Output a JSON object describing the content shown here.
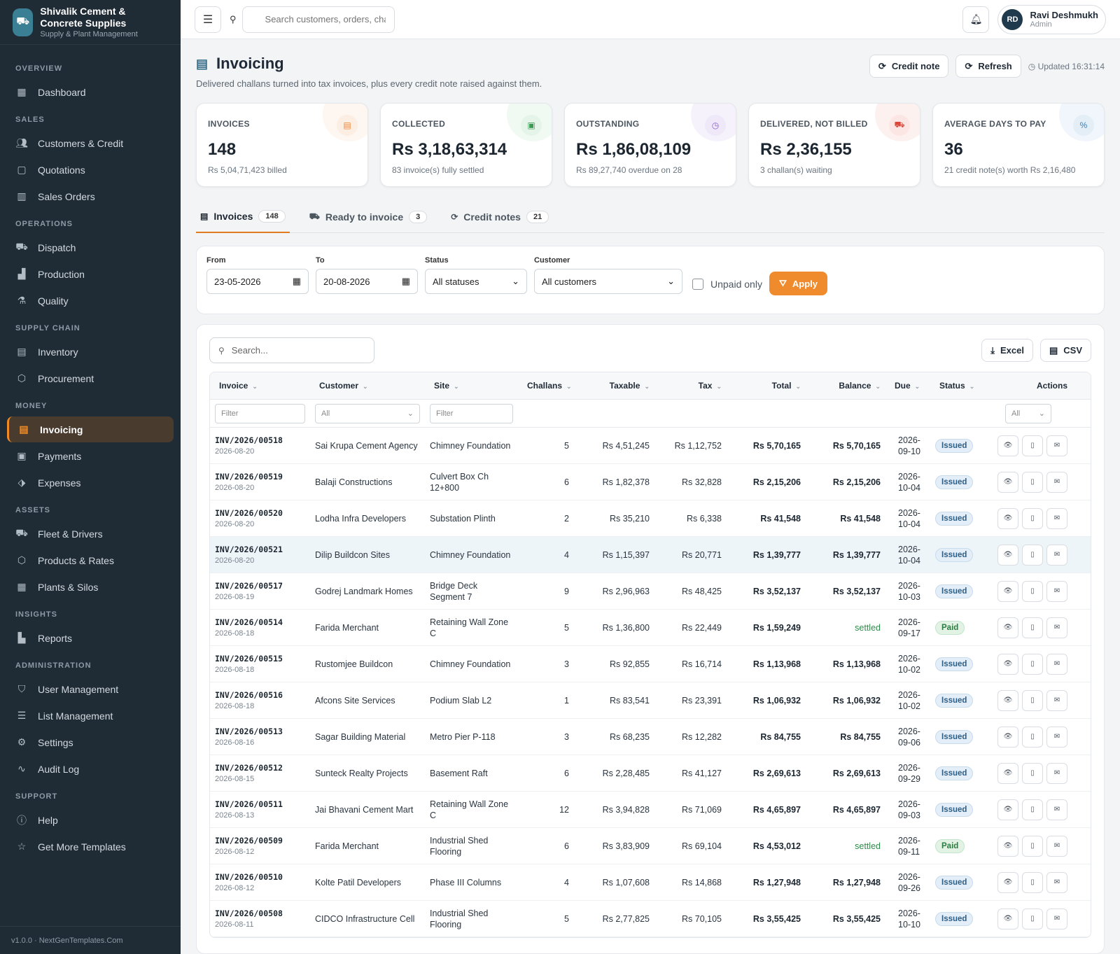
{
  "brand": {
    "title": "Shivalik Cement & Concrete Supplies",
    "subtitle": "Supply & Plant Management",
    "logo_icon": "truck-icon"
  },
  "sidebar": {
    "sections": [
      {
        "label": "OVERVIEW",
        "items": [
          {
            "label": "Dashboard",
            "icon": "grid-icon"
          }
        ]
      },
      {
        "label": "SALES",
        "items": [
          {
            "label": "Customers & Credit",
            "icon": "users-icon"
          },
          {
            "label": "Quotations",
            "icon": "document-icon"
          },
          {
            "label": "Sales Orders",
            "icon": "clipboard-icon"
          }
        ]
      },
      {
        "label": "OPERATIONS",
        "items": [
          {
            "label": "Dispatch",
            "icon": "truck-icon"
          },
          {
            "label": "Production",
            "icon": "factory-icon"
          },
          {
            "label": "Quality",
            "icon": "flask-icon"
          }
        ]
      },
      {
        "label": "SUPPLY CHAIN",
        "items": [
          {
            "label": "Inventory",
            "icon": "database-icon"
          },
          {
            "label": "Procurement",
            "icon": "box-icon"
          }
        ]
      },
      {
        "label": "MONEY",
        "items": [
          {
            "label": "Invoicing",
            "icon": "invoice-icon",
            "active": true
          },
          {
            "label": "Payments",
            "icon": "receipt-icon"
          },
          {
            "label": "Expenses",
            "icon": "tag-icon"
          }
        ]
      },
      {
        "label": "ASSETS",
        "items": [
          {
            "label": "Fleet & Drivers",
            "icon": "truck-icon"
          },
          {
            "label": "Products & Rates",
            "icon": "cube-icon"
          },
          {
            "label": "Plants & Silos",
            "icon": "building-icon"
          }
        ]
      },
      {
        "label": "INSIGHTS",
        "items": [
          {
            "label": "Reports",
            "icon": "bar-chart-icon"
          }
        ]
      },
      {
        "label": "ADMINISTRATION",
        "items": [
          {
            "label": "User Management",
            "icon": "shield-icon"
          },
          {
            "label": "List Management",
            "icon": "list-icon"
          },
          {
            "label": "Settings",
            "icon": "gear-icon"
          },
          {
            "label": "Audit Log",
            "icon": "activity-icon"
          }
        ]
      },
      {
        "label": "SUPPORT",
        "items": [
          {
            "label": "Help",
            "icon": "help-icon"
          },
          {
            "label": "Get More Templates",
            "icon": "star-icon"
          }
        ]
      }
    ],
    "footer": "v1.0.0 · NextGenTemplates.Com"
  },
  "topbar": {
    "search_placeholder": "Search customers, orders, chal",
    "user": {
      "initials": "RD",
      "name": "Ravi Deshmukh",
      "role": "Admin"
    }
  },
  "page": {
    "title": "Invoicing",
    "subtitle": "Delivered challans turned into tax invoices, plus every credit note raised against them.",
    "credit_note_label": "Credit note",
    "refresh_label": "Refresh",
    "updated": "Updated 16:31:14"
  },
  "kpis": [
    {
      "label": "INVOICES",
      "value": "148",
      "sub": "Rs 5,04,71,423 billed",
      "icon": "invoice-icon",
      "color": "#f0873a",
      "bg": "#fdeee3"
    },
    {
      "label": "COLLECTED",
      "value": "Rs 3,18,63,314",
      "sub": "83 invoice(s) fully settled",
      "icon": "receipt-icon",
      "color": "#3a9a55",
      "bg": "#e5f4e9"
    },
    {
      "label": "OUTSTANDING",
      "value": "Rs 1,86,08,109",
      "sub": "Rs 89,27,740 overdue on 28",
      "icon": "clock-icon",
      "color": "#8a5cc9",
      "bg": "#efe8f8"
    },
    {
      "label": "DELIVERED, NOT BILLED",
      "value": "Rs 2,36,155",
      "sub": "3 challan(s) waiting",
      "icon": "truck-icon",
      "color": "#d9483b",
      "bg": "#fbe6e4"
    },
    {
      "label": "AVERAGE DAYS TO PAY",
      "value": "36",
      "sub": "21 credit note(s) worth Rs 2,16,480",
      "icon": "percent-icon",
      "color": "#3b7fb5",
      "bg": "#e4eef7"
    }
  ],
  "tabs": [
    {
      "label": "Invoices",
      "count": "148",
      "icon": "invoice-icon",
      "active": true
    },
    {
      "label": "Ready to invoice",
      "count": "3",
      "icon": "truck-icon"
    },
    {
      "label": "Credit notes",
      "count": "21",
      "icon": "refresh-icon"
    }
  ],
  "filters": {
    "from_label": "From",
    "from_value": "23-05-2026",
    "to_label": "To",
    "to_value": "20-08-2026",
    "status_label": "Status",
    "status_value": "All statuses",
    "customer_label": "Customer",
    "customer_value": "All customers",
    "unpaid_label": "Unpaid only",
    "apply_label": "Apply"
  },
  "table": {
    "search_placeholder": "Search...",
    "excel_label": "Excel",
    "csv_label": "CSV",
    "columns": [
      "Invoice",
      "Customer",
      "Site",
      "Challans",
      "Taxable",
      "Tax",
      "Total",
      "Balance",
      "Due",
      "Status",
      "Actions"
    ],
    "filter_placeholder": "Filter",
    "filter_all": "All",
    "rows": [
      {
        "no": "INV/2026/00518",
        "date": "2026-08-20",
        "customer": "Sai Krupa Cement Agency",
        "site": "Chimney Foundation",
        "challans": "5",
        "taxable": "Rs 4,51,245",
        "tax": "Rs 1,12,752",
        "total": "Rs 5,70,165",
        "balance": "Rs 5,70,165",
        "due": "2026-09-10",
        "status": "Issued"
      },
      {
        "no": "INV/2026/00519",
        "date": "2026-08-20",
        "customer": "Balaji Constructions",
        "site": "Culvert Box Ch 12+800",
        "challans": "6",
        "taxable": "Rs 1,82,378",
        "tax": "Rs 32,828",
        "total": "Rs 2,15,206",
        "balance": "Rs 2,15,206",
        "due": "2026-10-04",
        "status": "Issued"
      },
      {
        "no": "INV/2026/00520",
        "date": "2026-08-20",
        "customer": "Lodha Infra Developers",
        "site": "Substation Plinth",
        "challans": "2",
        "taxable": "Rs 35,210",
        "tax": "Rs 6,338",
        "total": "Rs 41,548",
        "balance": "Rs 41,548",
        "due": "2026-10-04",
        "status": "Issued"
      },
      {
        "no": "INV/2026/00521",
        "date": "2026-08-20",
        "customer": "Dilip Buildcon Sites",
        "site": "Chimney Foundation",
        "challans": "4",
        "taxable": "Rs 1,15,397",
        "tax": "Rs 20,771",
        "total": "Rs 1,39,777",
        "balance": "Rs 1,39,777",
        "due": "2026-10-04",
        "status": "Issued",
        "hl": true
      },
      {
        "no": "INV/2026/00517",
        "date": "2026-08-19",
        "customer": "Godrej Landmark Homes",
        "site": "Bridge Deck Segment 7",
        "challans": "9",
        "taxable": "Rs 2,96,963",
        "tax": "Rs 48,425",
        "total": "Rs 3,52,137",
        "balance": "Rs 3,52,137",
        "due": "2026-10-03",
        "status": "Issued"
      },
      {
        "no": "INV/2026/00514",
        "date": "2026-08-18",
        "customer": "Farida Merchant",
        "site": "Retaining Wall Zone C",
        "challans": "5",
        "taxable": "Rs 1,36,800",
        "tax": "Rs 22,449",
        "total": "Rs 1,59,249",
        "balance": "settled",
        "due": "2026-09-17",
        "status": "Paid"
      },
      {
        "no": "INV/2026/00515",
        "date": "2026-08-18",
        "customer": "Rustomjee Buildcon",
        "site": "Chimney Foundation",
        "challans": "3",
        "taxable": "Rs 92,855",
        "tax": "Rs 16,714",
        "total": "Rs 1,13,968",
        "balance": "Rs 1,13,968",
        "due": "2026-10-02",
        "status": "Issued"
      },
      {
        "no": "INV/2026/00516",
        "date": "2026-08-18",
        "customer": "Afcons Site Services",
        "site": "Podium Slab L2",
        "challans": "1",
        "taxable": "Rs 83,541",
        "tax": "Rs 23,391",
        "total": "Rs 1,06,932",
        "balance": "Rs 1,06,932",
        "due": "2026-10-02",
        "status": "Issued"
      },
      {
        "no": "INV/2026/00513",
        "date": "2026-08-16",
        "customer": "Sagar Building Material",
        "site": "Metro Pier P-118",
        "challans": "3",
        "taxable": "Rs 68,235",
        "tax": "Rs 12,282",
        "total": "Rs 84,755",
        "balance": "Rs 84,755",
        "due": "2026-09-06",
        "status": "Issued"
      },
      {
        "no": "INV/2026/00512",
        "date": "2026-08-15",
        "customer": "Sunteck Realty Projects",
        "site": "Basement Raft",
        "challans": "6",
        "taxable": "Rs 2,28,485",
        "tax": "Rs 41,127",
        "total": "Rs 2,69,613",
        "balance": "Rs 2,69,613",
        "due": "2026-09-29",
        "status": "Issued"
      },
      {
        "no": "INV/2026/00511",
        "date": "2026-08-13",
        "customer": "Jai Bhavani Cement Mart",
        "site": "Retaining Wall Zone C",
        "challans": "12",
        "taxable": "Rs 3,94,828",
        "tax": "Rs 71,069",
        "total": "Rs 4,65,897",
        "balance": "Rs 4,65,897",
        "due": "2026-09-03",
        "status": "Issued"
      },
      {
        "no": "INV/2026/00509",
        "date": "2026-08-12",
        "customer": "Farida Merchant",
        "site": "Industrial Shed Flooring",
        "challans": "6",
        "taxable": "Rs 3,83,909",
        "tax": "Rs 69,104",
        "total": "Rs 4,53,012",
        "balance": "settled",
        "due": "2026-09-11",
        "status": "Paid"
      },
      {
        "no": "INV/2026/00510",
        "date": "2026-08-12",
        "customer": "Kolte Patil Developers",
        "site": "Phase III Columns",
        "challans": "4",
        "taxable": "Rs 1,07,608",
        "tax": "Rs 14,868",
        "total": "Rs 1,27,948",
        "balance": "Rs 1,27,948",
        "due": "2026-09-26",
        "status": "Issued"
      },
      {
        "no": "INV/2026/00508",
        "date": "2026-08-11",
        "customer": "CIDCO Infrastructure Cell",
        "site": "Industrial Shed Flooring",
        "challans": "5",
        "taxable": "Rs 2,77,825",
        "tax": "Rs 70,105",
        "total": "Rs 3,55,425",
        "balance": "Rs 3,55,425",
        "due": "2026-10-10",
        "status": "Issued"
      }
    ]
  }
}
